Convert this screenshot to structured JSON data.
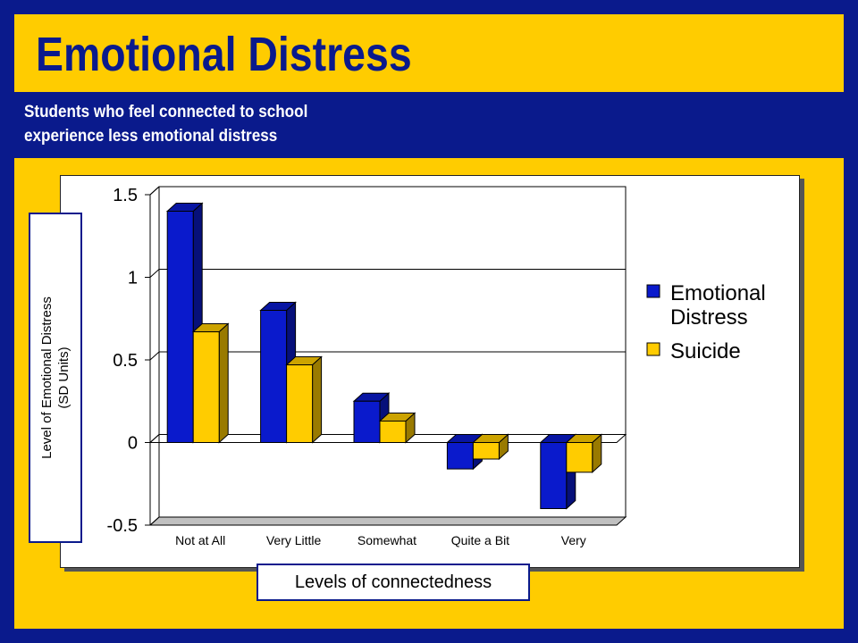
{
  "slide": {
    "title": "Emotional Distress",
    "subtitle_line1": "Students who feel connected to school",
    "subtitle_line2": "experience less emotional distress",
    "ylabel_line1": "Level of Emotional Distress",
    "ylabel_line2": "(SD Units)",
    "xlabel": "Levels of connectedness"
  },
  "colors": {
    "background": "#0a1a8c",
    "accent": "#ffcc00",
    "series_blue": "#0a1acc",
    "series_yellow": "#ffcc00"
  },
  "chart_data": {
    "type": "bar",
    "style": "3d-clustered-column",
    "categories": [
      "Not at All",
      "Very Little",
      "Somewhat",
      "Quite a Bit",
      "Very"
    ],
    "series": [
      {
        "name": "Emotional Distress",
        "values": [
          1.4,
          0.8,
          0.25,
          -0.16,
          -0.4
        ]
      },
      {
        "name": "Suicide",
        "values": [
          0.67,
          0.47,
          0.13,
          -0.1,
          -0.18
        ]
      }
    ],
    "ylim": [
      -0.5,
      1.5
    ],
    "yticks": [
      "1.5",
      "1",
      "0.5",
      "0",
      "-0.5"
    ],
    "ytick_values": [
      1.5,
      1,
      0.5,
      0,
      -0.5
    ],
    "grid": true,
    "legend": "right",
    "legend_lines": [
      [
        "Emotional",
        "Distress"
      ],
      [
        "Suicide"
      ]
    ]
  }
}
